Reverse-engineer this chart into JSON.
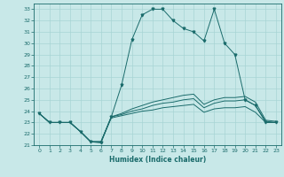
{
  "title": "",
  "xlabel": "Humidex (Indice chaleur)",
  "background_color": "#c8e8e8",
  "line_color": "#1a6b6b",
  "grid_color": "#a8d4d4",
  "xlim": [
    -0.5,
    23.5
  ],
  "ylim": [
    21,
    33.5
  ],
  "xticks": [
    0,
    1,
    2,
    3,
    4,
    5,
    6,
    7,
    8,
    9,
    10,
    11,
    12,
    13,
    14,
    15,
    16,
    17,
    18,
    19,
    20,
    21,
    22,
    23
  ],
  "yticks": [
    21,
    22,
    23,
    24,
    25,
    26,
    27,
    28,
    29,
    30,
    31,
    32,
    33
  ],
  "series": [
    [
      23.8,
      23.0,
      23.0,
      23.0,
      22.2,
      21.3,
      21.2,
      23.5,
      26.3,
      30.3,
      32.5,
      33.0,
      33.0,
      32.0,
      31.3,
      31.0,
      30.2,
      33.0,
      30.0,
      29.0,
      25.0,
      24.5,
      23.0,
      23.0
    ],
    [
      23.8,
      23.0,
      23.0,
      23.0,
      22.2,
      21.3,
      21.3,
      23.5,
      23.8,
      24.2,
      24.5,
      24.8,
      25.0,
      25.2,
      25.4,
      25.5,
      24.6,
      25.0,
      25.2,
      25.2,
      25.3,
      24.8,
      23.2,
      23.1
    ],
    [
      23.8,
      23.0,
      23.0,
      23.0,
      22.2,
      21.3,
      21.3,
      23.5,
      23.7,
      24.0,
      24.2,
      24.5,
      24.7,
      24.8,
      25.0,
      25.1,
      24.3,
      24.7,
      24.9,
      24.9,
      25.0,
      24.5,
      23.1,
      23.0
    ],
    [
      23.8,
      23.0,
      23.0,
      23.0,
      22.2,
      21.3,
      21.3,
      23.4,
      23.6,
      23.8,
      24.0,
      24.1,
      24.3,
      24.4,
      24.5,
      24.6,
      23.9,
      24.2,
      24.3,
      24.3,
      24.4,
      23.9,
      23.0,
      23.0
    ]
  ]
}
